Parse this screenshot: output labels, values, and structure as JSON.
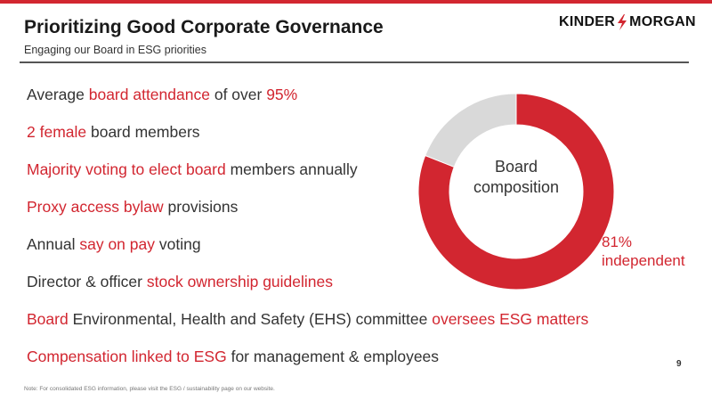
{
  "header": {
    "title": "Prioritizing Good Corporate Governance",
    "subtitle": "Engaging our Board in ESG priorities"
  },
  "logo": {
    "left": "KINDER",
    "right": "MORGAN",
    "bolt_icon": "lightning-bolt-icon"
  },
  "bullets": [
    [
      {
        "t": "Average ",
        "hl": false
      },
      {
        "t": "board attendance",
        "hl": true
      },
      {
        "t": " of over ",
        "hl": false
      },
      {
        "t": "95%",
        "hl": true
      }
    ],
    [
      {
        "t": "2 female",
        "hl": true
      },
      {
        "t": " board members",
        "hl": false
      }
    ],
    [
      {
        "t": "Majority voting to elect board",
        "hl": true
      },
      {
        "t": " members annually",
        "hl": false
      }
    ],
    [
      {
        "t": "Proxy access bylaw",
        "hl": true
      },
      {
        "t": " provisions",
        "hl": false
      }
    ],
    [
      {
        "t": "Annual ",
        "hl": false
      },
      {
        "t": "say on pay",
        "hl": true
      },
      {
        "t": " voting",
        "hl": false
      }
    ],
    [
      {
        "t": "Director & officer ",
        "hl": false
      },
      {
        "t": "stock ownership guidelines",
        "hl": true
      }
    ],
    [
      {
        "t": "Board",
        "hl": true
      },
      {
        "t": " Environmental, Health and Safety (EHS) committee ",
        "hl": false
      },
      {
        "t": "oversees ESG matters",
        "hl": true
      }
    ],
    [
      {
        "t": "Compensation linked to ESG",
        "hl": true
      },
      {
        "t": " for management & employees",
        "hl": false
      }
    ]
  ],
  "chart_data": {
    "type": "pie",
    "title": "Board composition",
    "center_label_line1": "Board",
    "center_label_line2": "composition",
    "slices": [
      {
        "name": "independent",
        "value": 81,
        "color": "#d22630"
      },
      {
        "name": "",
        "value": 19,
        "color": "#d9d9d9"
      }
    ],
    "label_value": "81%",
    "label_text": "independent"
  },
  "colors": {
    "accent": "#d22630",
    "text": "#333333",
    "rest": "#d9d9d9"
  },
  "page_number": "9",
  "note": "Note:  For consolidated ESG information, please visit the ESG / sustainability page on our website."
}
